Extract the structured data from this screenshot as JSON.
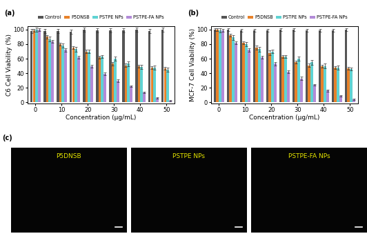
{
  "chart_data": [
    {
      "type": "bar",
      "title": "(a)",
      "x_label": "Concentration (μg/mL)",
      "y_label": "C6 Cell Viability (%)",
      "categories": [
        "0",
        null,
        "10",
        null,
        "20",
        null,
        "30",
        null,
        "40",
        null,
        "50"
      ],
      "ylim": [
        -2,
        105
      ],
      "yticks": [
        0,
        20,
        40,
        60,
        80,
        100
      ],
      "legend": "upper center",
      "series": [
        {
          "name": "Control",
          "color": "#555555",
          "values": [
            98,
            98,
            98,
            97,
            100,
            99,
            99,
            99,
            100,
            98,
            100
          ],
          "errors": [
            3,
            3,
            3,
            3,
            3,
            3,
            3,
            3,
            3,
            3,
            3
          ]
        },
        {
          "name": "P5DNSB",
          "color": "#e8822a",
          "values": [
            99,
            90,
            80,
            75,
            70,
            62,
            53,
            51,
            50,
            48,
            47
          ],
          "errors": [
            2,
            2,
            2,
            2,
            2,
            2,
            2,
            2,
            2,
            2,
            2
          ]
        },
        {
          "name": "PSTPE NPs",
          "color": "#5fd3d3",
          "values": [
            100,
            87,
            78,
            73,
            70,
            63,
            60,
            53,
            49,
            48,
            45
          ],
          "errors": [
            3,
            3,
            3,
            3,
            2,
            2,
            3,
            3,
            3,
            3,
            3
          ]
        },
        {
          "name": "PSTPE-FA NPs",
          "color": "#b28bd8",
          "values": [
            100,
            84,
            72,
            62,
            50,
            39,
            30,
            22,
            14,
            6,
            2
          ],
          "errors": [
            2,
            2,
            2,
            2,
            2,
            2,
            2,
            1,
            1,
            1,
            1
          ]
        }
      ]
    },
    {
      "type": "bar",
      "title": "(b)",
      "x_label": "Concentration (μg/mL)",
      "y_label": "MCF-7 Cell Viability (%)",
      "categories": [
        "0",
        null,
        "10",
        null,
        "20",
        null,
        "30",
        null,
        "40",
        null,
        "50"
      ],
      "ylim": [
        -2,
        105
      ],
      "yticks": [
        0,
        20,
        40,
        60,
        80,
        100
      ],
      "legend": "upper center",
      "series": [
        {
          "name": "Control",
          "color": "#555555",
          "values": [
            100,
            100,
            99,
            99,
            99,
            100,
            100,
            99,
            99,
            99,
            100
          ],
          "errors": [
            2,
            2,
            2,
            2,
            2,
            2,
            2,
            2,
            2,
            2,
            2
          ]
        },
        {
          "name": "P5DNSB",
          "color": "#e8822a",
          "values": [
            100,
            92,
            82,
            75,
            68,
            63,
            55,
            51,
            50,
            48,
            47
          ],
          "errors": [
            2,
            2,
            2,
            3,
            3,
            2,
            2,
            2,
            2,
            2,
            2
          ]
        },
        {
          "name": "PSTPE NPs",
          "color": "#5fd3d3",
          "values": [
            99,
            89,
            80,
            73,
            70,
            63,
            60,
            55,
            50,
            48,
            46
          ],
          "errors": [
            3,
            3,
            3,
            3,
            2,
            2,
            3,
            3,
            3,
            3,
            2
          ]
        },
        {
          "name": "PSTPE-FA NPs",
          "color": "#b28bd8",
          "values": [
            99,
            82,
            72,
            62,
            53,
            42,
            33,
            24,
            16,
            9,
            4
          ],
          "errors": [
            2,
            2,
            2,
            2,
            2,
            2,
            2,
            1,
            1,
            1,
            1
          ]
        }
      ]
    }
  ],
  "image_panels": {
    "label": "(c)",
    "panels": [
      "P5DNSB",
      "PSTPE NPs",
      "PSTPE-FA NPs"
    ]
  }
}
